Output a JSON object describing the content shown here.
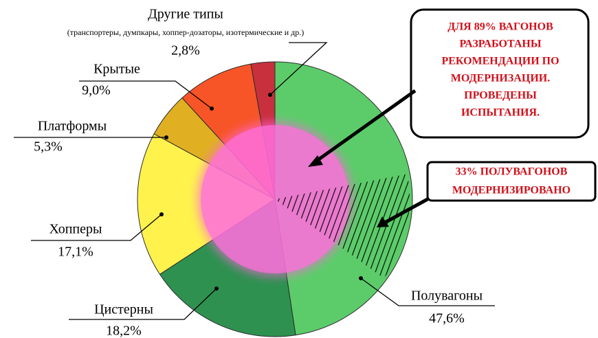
{
  "chart_data": {
    "type": "pie",
    "categories": [
      "Полувагоны",
      "Цистерны",
      "Хопперы",
      "Платформы",
      "Крытые",
      "Другие типы"
    ],
    "values": [
      47.6,
      18.2,
      17.1,
      5.3,
      9.0,
      2.8
    ],
    "value_labels": [
      "47,6%",
      "18,2%",
      "17,1%",
      "5,3%",
      "9,0%",
      "2,8%"
    ],
    "colors": [
      "#5ccc6a",
      "#2e9150",
      "#fff24c",
      "#e0b022",
      "#f75527",
      "#c8303e"
    ],
    "other_note": "(транспортеры, думпкары, хоппер-дозаторы, изотермические и др.)",
    "annotations": [
      {
        "lines": [
          "ДЛЯ 89% ВАГОНОВ",
          "РАЗРАБОТАНЫ",
          "РЕКОМЕНДАЦИИ ПО",
          "МОДЕРНИЗАЦИИ.",
          "ПРОВЕДЕНЫ",
          "ИСПЫТАНИЯ."
        ]
      },
      {
        "lines": [
          "33% ПОЛУВАГОНОВ",
          "МОДЕРНИЗИРОВАНО"
        ]
      }
    ]
  }
}
